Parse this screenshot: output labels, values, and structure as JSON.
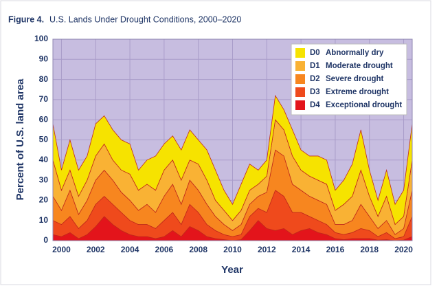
{
  "chart_data": {
    "type": "stacked_area",
    "figure_label": "Figure 4.",
    "title": "U.S. Lands Under Drought Conditions, 2000–2020",
    "xlabel": "Year",
    "ylabel": "Percent of U.S. land area",
    "xlim": [
      1999.5,
      2020.5
    ],
    "xticks": [
      2000,
      2002,
      2004,
      2006,
      2008,
      2010,
      2012,
      2014,
      2016,
      2018,
      2020
    ],
    "ylim": [
      0,
      100
    ],
    "yticks": [
      0,
      10,
      20,
      30,
      40,
      50,
      60,
      70,
      80,
      90,
      100
    ],
    "grid": true,
    "legend": "upper right",
    "x": [
      1999.5,
      2000.0,
      2000.5,
      2001.0,
      2001.5,
      2002.0,
      2002.5,
      2003.0,
      2003.5,
      2004.0,
      2004.5,
      2005.0,
      2005.5,
      2006.0,
      2006.5,
      2007.0,
      2007.5,
      2008.0,
      2008.5,
      2009.0,
      2009.5,
      2010.0,
      2010.5,
      2011.0,
      2011.5,
      2012.0,
      2012.5,
      2013.0,
      2013.5,
      2014.0,
      2014.5,
      2015.0,
      2015.5,
      2016.0,
      2016.5,
      2017.0,
      2017.5,
      2018.0,
      2018.5,
      2019.0,
      2019.5,
      2020.0,
      2020.5
    ],
    "series": [
      {
        "name": "D4",
        "description": "Exceptional drought",
        "color": "#e3141b",
        "values": [
          3,
          2,
          4,
          1,
          3,
          7,
          12,
          8,
          5,
          3,
          2,
          2,
          1,
          2,
          5,
          2,
          7,
          5,
          2,
          1,
          0.5,
          0,
          0.5,
          5,
          10,
          6,
          5,
          6,
          3,
          5,
          6,
          4,
          3,
          1,
          0.5,
          1,
          1,
          1,
          0.3,
          0.5,
          0,
          0.3,
          2
        ]
      },
      {
        "name": "D3",
        "description": "Extreme drought",
        "color": "#ef4a1c",
        "values": [
          7,
          6,
          8,
          5,
          7,
          11,
          10,
          10,
          9,
          7,
          6,
          6,
          5,
          8,
          9,
          6,
          11,
          9,
          6,
          4,
          2.5,
          2,
          2.5,
          7,
          6,
          8,
          20,
          16,
          11,
          9,
          6,
          6,
          5,
          3,
          2.5,
          3,
          5,
          4,
          1.7,
          3.5,
          1,
          1.7,
          10
        ]
      },
      {
        "name": "D2",
        "description": "Severe drought",
        "color": "#f7861f",
        "values": [
          12,
          7,
          13,
          7,
          10,
          12,
          13,
          12,
          10,
          10,
          7,
          10,
          8,
          12,
          14,
          10,
          12,
          11,
          10,
          7,
          5,
          3,
          5,
          6,
          6,
          10,
          20,
          20,
          14,
          11,
          10,
          10,
          10,
          4,
          5,
          6,
          12,
          7,
          4,
          6,
          2,
          4,
          13
        ]
      },
      {
        "name": "D1",
        "description": "Moderate drought",
        "color": "#f9b234",
        "values": [
          18,
          10,
          10,
          9,
          10,
          12,
          13,
          10,
          11,
          13,
          10,
          10,
          11,
          13,
          12,
          12,
          10,
          13,
          12,
          8,
          7,
          5,
          7,
          7,
          6,
          8,
          15,
          13,
          14,
          10,
          10,
          10,
          10,
          7,
          10,
          12,
          17,
          10,
          6,
          12,
          5,
          6,
          15
        ]
      },
      {
        "name": "D0",
        "description": "Abnormally dry",
        "color": "#f6e300",
        "values": [
          18,
          10,
          15,
          13,
          12,
          16,
          14,
          15,
          15,
          15,
          10,
          12,
          17,
          13,
          12,
          15,
          15,
          12,
          15,
          15,
          10,
          8,
          13,
          13,
          7,
          8,
          12,
          10,
          13,
          10,
          10,
          12,
          12,
          10,
          12,
          16,
          20,
          13,
          8,
          13,
          10,
          13,
          18
        ]
      }
    ]
  }
}
